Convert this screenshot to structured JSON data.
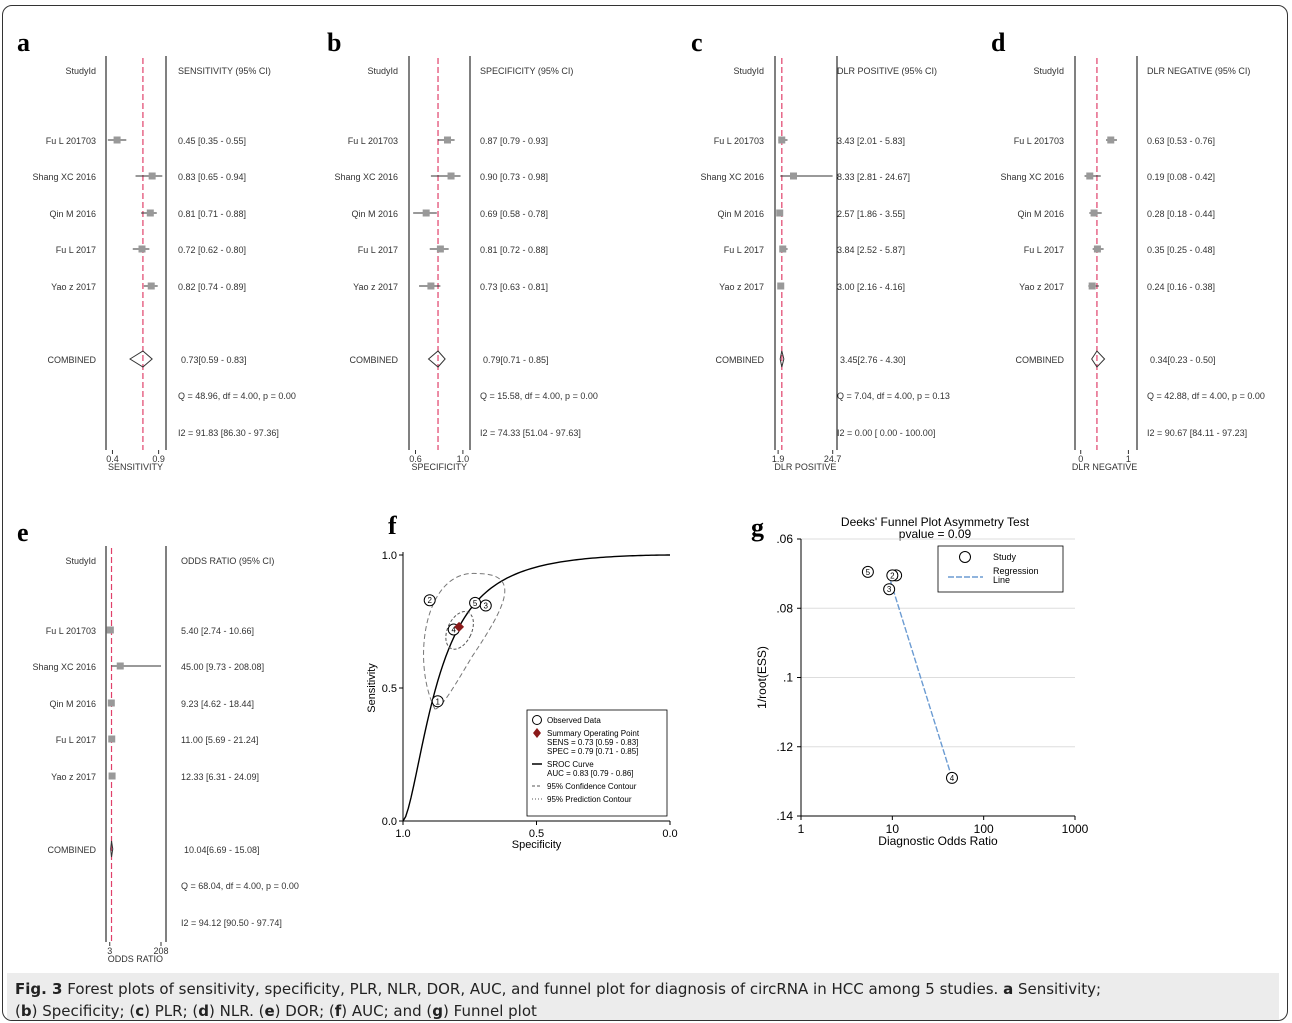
{
  "forest_common": {
    "study_header": "StudyId",
    "studies": [
      "Fu L 201703",
      "Shang XC 2016",
      "Qin M 2016",
      "Fu L 2017",
      "Yao z 2017"
    ],
    "combined_label": "COMBINED"
  },
  "panels": [
    {
      "letter": "a",
      "header": "SENSITIVITY (95% CI)",
      "axis_label": "SENSITIVITY",
      "ticks": [
        "0.4",
        "0.9"
      ],
      "xmin": 0.33,
      "xmax": 0.98,
      "rows": [
        {
          "v": 0.45,
          "lo": 0.35,
          "hi": 0.55,
          "text": "0.45 [0.35 - 0.55]"
        },
        {
          "v": 0.83,
          "lo": 0.65,
          "hi": 0.94,
          "text": "0.83 [0.65 - 0.94]"
        },
        {
          "v": 0.81,
          "lo": 0.71,
          "hi": 0.88,
          "text": "0.81 [0.71 - 0.88]"
        },
        {
          "v": 0.72,
          "lo": 0.62,
          "hi": 0.8,
          "text": "0.72 [0.62 - 0.80]"
        },
        {
          "v": 0.82,
          "lo": 0.74,
          "hi": 0.89,
          "text": "0.82 [0.74 - 0.89]"
        }
      ],
      "combined": {
        "v": 0.73,
        "lo": 0.59,
        "hi": 0.83,
        "text": "0.73[0.59 - 0.83]"
      },
      "q_text": "Q = 48.96, df = 4.00, p =  0.00",
      "i2_text": "I2 = 91.83 [86.30 - 97.36]"
    },
    {
      "letter": "b",
      "header": "SPECIFICITY (95% CI)",
      "axis_label": "SPECIFICITY",
      "ticks": [
        "0.6",
        "1.0"
      ],
      "xmin": 0.545,
      "xmax": 1.06,
      "rows": [
        {
          "v": 0.87,
          "lo": 0.79,
          "hi": 0.93,
          "text": "0.87 [0.79 - 0.93]"
        },
        {
          "v": 0.9,
          "lo": 0.73,
          "hi": 0.98,
          "text": "0.90 [0.73 - 0.98]"
        },
        {
          "v": 0.69,
          "lo": 0.58,
          "hi": 0.78,
          "text": "0.69 [0.58 - 0.78]"
        },
        {
          "v": 0.81,
          "lo": 0.72,
          "hi": 0.88,
          "text": "0.81 [0.72 - 0.88]"
        },
        {
          "v": 0.73,
          "lo": 0.63,
          "hi": 0.81,
          "text": "0.73 [0.63 - 0.81]"
        }
      ],
      "combined": {
        "v": 0.79,
        "lo": 0.71,
        "hi": 0.85,
        "text": "0.79[0.71 - 0.85]"
      },
      "q_text": "Q = 15.58, df = 4.00, p =  0.00",
      "i2_text": "I2 = 74.33 [51.04 - 97.63]"
    },
    {
      "letter": "c",
      "header": "DLR POSITIVE (95% CI)",
      "axis_label": "DLR POSITIVE",
      "ticks": [
        "1.9",
        "24.7"
      ],
      "xmin": 0.6,
      "xmax": 26.5,
      "rows": [
        {
          "v": 3.43,
          "lo": 2.01,
          "hi": 5.83,
          "text": "3.43 [2.01 - 5.83]"
        },
        {
          "v": 8.33,
          "lo": 2.81,
          "hi": 24.67,
          "text": "8.33 [2.81 - 24.67]"
        },
        {
          "v": 2.57,
          "lo": 1.86,
          "hi": 3.55,
          "text": "2.57 [1.86 - 3.55]"
        },
        {
          "v": 3.84,
          "lo": 2.52,
          "hi": 5.87,
          "text": "3.84 [2.52 - 5.87]"
        },
        {
          "v": 3.0,
          "lo": 2.16,
          "hi": 4.16,
          "text": "3.00 [2.16 - 4.16]"
        }
      ],
      "combined": {
        "v": 3.45,
        "lo": 2.76,
        "hi": 4.3,
        "text": "3.45[2.76 - 4.30]"
      },
      "q_text": "Q =  7.04, df = 4.00, p =  0.13",
      "i2_text": "I2 =  0.00 [ 0.00 - 100.00]"
    },
    {
      "letter": "d",
      "header": "DLR NEGATIVE (95% CI)",
      "axis_label": "DLR NEGATIVE",
      "ticks": [
        "0",
        "1"
      ],
      "xmin": -0.12,
      "xmax": 1.18,
      "rows": [
        {
          "v": 0.63,
          "lo": 0.53,
          "hi": 0.76,
          "text": "0.63 [0.53 - 0.76]"
        },
        {
          "v": 0.19,
          "lo": 0.08,
          "hi": 0.42,
          "text": "0.19 [0.08 - 0.42]"
        },
        {
          "v": 0.28,
          "lo": 0.18,
          "hi": 0.44,
          "text": "0.28 [0.18 - 0.44]"
        },
        {
          "v": 0.35,
          "lo": 0.25,
          "hi": 0.48,
          "text": "0.35 [0.25 - 0.48]"
        },
        {
          "v": 0.24,
          "lo": 0.16,
          "hi": 0.38,
          "text": "0.24 [0.16 - 0.38]"
        }
      ],
      "combined": {
        "v": 0.34,
        "lo": 0.23,
        "hi": 0.5,
        "text": "0.34[0.23 - 0.50]"
      },
      "q_text": "Q = 42.88, df = 4.00, p =  0.00",
      "i2_text": "I2 = 90.67 [84.11 - 97.23]"
    },
    {
      "letter": "e",
      "header": "ODDS RATIO (95% CI)",
      "axis_label": "ODDS RATIO",
      "ticks": [
        "3",
        "208"
      ],
      "xmin": -12,
      "xmax": 228,
      "rows": [
        {
          "v": 5.4,
          "lo": 2.74,
          "hi": 10.66,
          "text": "5.40 [2.74 - 10.66]"
        },
        {
          "v": 45.0,
          "lo": 9.73,
          "hi": 208.08,
          "text": "45.00 [9.73 - 208.08]"
        },
        {
          "v": 9.23,
          "lo": 4.62,
          "hi": 18.44,
          "text": "9.23 [4.62 - 18.44]"
        },
        {
          "v": 11.0,
          "lo": 5.69,
          "hi": 21.24,
          "text": "11.00 [5.69 - 21.24]"
        },
        {
          "v": 12.33,
          "lo": 6.31,
          "hi": 24.09,
          "text": "12.33 [6.31 - 24.09]"
        }
      ],
      "combined": {
        "v": 10.04,
        "lo": 6.69,
        "hi": 15.08,
        "text": "10.04[6.69 - 15.08]"
      },
      "q_text": "Q = 68.04, df = 4.00, p =  0.00",
      "i2_text": "I2 = 94.12 [90.50 - 97.74]"
    }
  ],
  "chart_data": [
    {
      "type": "scatter",
      "panel": "f",
      "xlabel": "Specificity",
      "ylabel": "Sensitivity",
      "x_ticks": [
        "1.0",
        "0.5",
        "0.0"
      ],
      "y_ticks": [
        "0.0",
        "0.5",
        "1.0"
      ],
      "xlim": [
        1.0,
        0.0
      ],
      "ylim": [
        0.0,
        1.0
      ],
      "points": [
        {
          "label": "1",
          "spec": 0.87,
          "sens": 0.45
        },
        {
          "label": "2",
          "spec": 0.9,
          "sens": 0.83
        },
        {
          "label": "3",
          "spec": 0.69,
          "sens": 0.81
        },
        {
          "label": "4",
          "spec": 0.81,
          "sens": 0.72
        },
        {
          "label": "5",
          "spec": 0.73,
          "sens": 0.82
        }
      ],
      "summary": {
        "spec": 0.79,
        "sens": 0.73
      },
      "auc": 0.83,
      "legend": [
        {
          "symbol": "circle",
          "text": "Observed Data"
        },
        {
          "symbol": "diamond",
          "text": "Summary Operating Point",
          "sub": [
            "SENS = 0.73 [0.59 - 0.83]",
            "SPEC = 0.79 [0.71 - 0.85]"
          ]
        },
        {
          "symbol": "solid",
          "text": "SROC Curve",
          "sub": [
            "AUC = 0.83 [0.79 - 0.86]"
          ]
        },
        {
          "symbol": "dash",
          "text": "95% Confidence Contour"
        },
        {
          "symbol": "dot",
          "text": "95% Prediction Contour"
        }
      ],
      "legend_position": "bottom-right",
      "colors": {
        "summary": "#8b1a1a"
      }
    },
    {
      "type": "scatter",
      "panel": "g",
      "title": "Deeks' Funnel Plot Asymmetry Test",
      "subtitle": "pvalue  =  0.09",
      "xlabel": "Diagnostic Odds Ratio",
      "ylabel": "1/root(ESS)",
      "x_scale": "log",
      "x_ticks": [
        "1",
        "10",
        "100",
        "1000"
      ],
      "y_ticks": [
        ".06",
        ".08",
        ".1",
        ".12",
        ".14"
      ],
      "xlim": [
        1,
        1000
      ],
      "ylim": [
        0.06,
        0.14
      ],
      "points": [
        {
          "label": "1",
          "dor": 11.0,
          "y": 0.0705
        },
        {
          "label": "2",
          "dor": 10.0,
          "y": 0.0705
        },
        {
          "label": "3",
          "dor": 9.23,
          "y": 0.0745
        },
        {
          "label": "4",
          "dor": 45.0,
          "y": 0.129
        },
        {
          "label": "5",
          "dor": 5.4,
          "y": 0.0695
        }
      ],
      "regression": [
        {
          "dor": 9.0,
          "y": 0.07
        },
        {
          "dor": 45.0,
          "y": 0.129
        }
      ],
      "legend": [
        {
          "symbol": "circle",
          "text": "Study"
        },
        {
          "symbol": "dash",
          "text": "Regression",
          "text2": "Line"
        }
      ],
      "legend_position": "top-right",
      "colors": {
        "regression": "#6b9bd2"
      }
    }
  ],
  "caption": {
    "fig_label": "Fig. 3",
    "body": "Forest plots of sensitivity, specificity, PLR, NLR, DOR, AUC, and funnel plot for diagnosis of circRNA in HCC among 5 studies. ",
    "parts": [
      {
        "l": "a",
        "t": " Sensitivity;"
      },
      {
        "pre": "(",
        "l": "b",
        "t": ") Specificity; ("
      },
      {
        "l": "c",
        "t": ") PLR; ("
      },
      {
        "l": "d",
        "t": ") NLR. ("
      },
      {
        "l": "e",
        "t": ") DOR; ("
      },
      {
        "l": "f",
        "t": ") AUC; and ("
      },
      {
        "l": "g",
        "t": ") Funnel plot"
      }
    ]
  },
  "colors": {
    "ref_line": "#e0406a",
    "marker": "#999999",
    "axis": "#444444",
    "grid": "#dddddd"
  }
}
